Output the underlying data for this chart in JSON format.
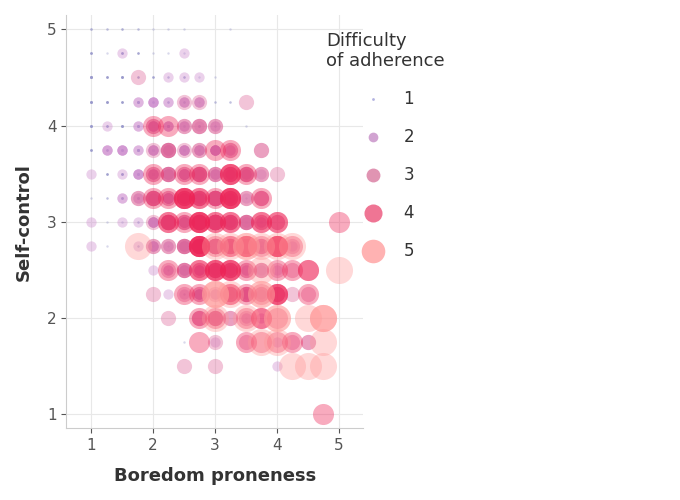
{
  "title": "Difficulty\nof adherence",
  "xlabel": "Boredom proneness",
  "ylabel": "Self-control",
  "xlim": [
    0.6,
    5.4
  ],
  "ylim": [
    0.85,
    5.15
  ],
  "xticks": [
    1,
    2,
    3,
    4,
    5
  ],
  "yticks": [
    1,
    2,
    3,
    4,
    5
  ],
  "alpha": 0.38,
  "background_color": "#ffffff",
  "grid_color": "#e8e8e8",
  "colors": {
    "1": "#9999cc",
    "2": "#cc88cc",
    "3": "#dd6699",
    "4": "#ee2255",
    "5": "#ff9999"
  },
  "legend_colors": {
    "1": "#aaaadd",
    "2": "#cc99cc",
    "3": "#dd88aa",
    "4": "#ee6688",
    "5": "#ffaaaa"
  },
  "seed": 42,
  "n_points": 1200,
  "size_base": [
    3,
    55,
    120,
    230,
    380
  ]
}
